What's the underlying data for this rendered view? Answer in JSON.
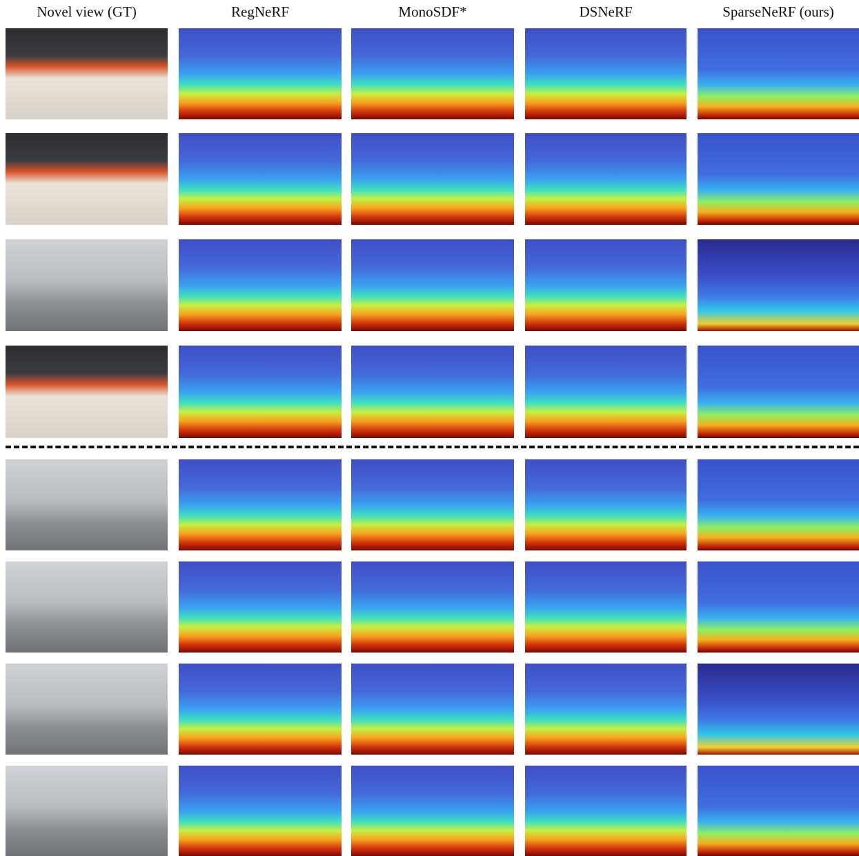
{
  "columns": [
    "Novel view (GT)",
    "RegNeRF",
    "MonoSDF*",
    "DSNeRF",
    "SparseNeRF (ours)"
  ]
}
